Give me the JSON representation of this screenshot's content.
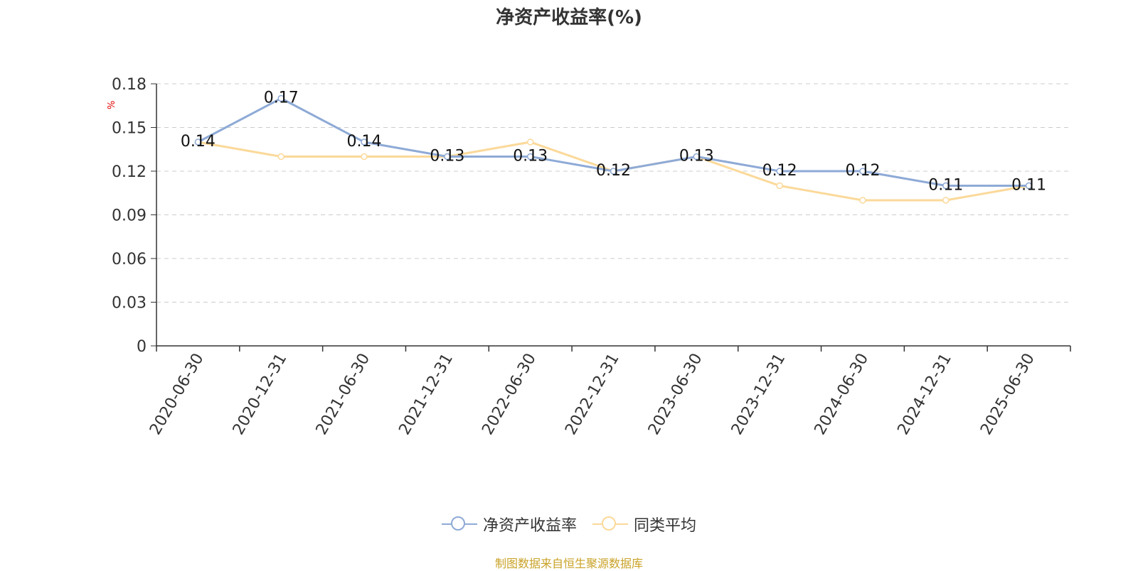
{
  "title": "净资产收益率(%)",
  "source": "制图数据来自恒生聚源数据库",
  "chart_data": {
    "type": "line",
    "title": "净资产收益率(%)",
    "ylabel": "%",
    "xlabel": "",
    "ylim": [
      0,
      0.18
    ],
    "yticks": [
      "0",
      "0.03",
      "0.06",
      "0.09",
      "0.12",
      "0.15",
      "0.18"
    ],
    "grid": true,
    "legend_position": "bottom",
    "categories": [
      "2020-06-30",
      "2020-12-31",
      "2021-06-30",
      "2021-12-31",
      "2022-06-30",
      "2022-12-31",
      "2023-06-30",
      "2023-12-31",
      "2024-06-30",
      "2024-12-31",
      "2025-06-30"
    ],
    "series": [
      {
        "name": "净资产收益率",
        "color": "#8eaad6",
        "values": [
          0.14,
          0.17,
          0.14,
          0.13,
          0.13,
          0.12,
          0.13,
          0.12,
          0.12,
          0.11,
          0.11
        ],
        "labels": [
          "0.14",
          "0.17",
          "0.14",
          "0.13",
          "0.13",
          "0.12",
          "0.13",
          "0.12",
          "0.12",
          "0.11",
          "0.11"
        ]
      },
      {
        "name": "同类平均",
        "color": "#fbd99a",
        "values": [
          0.14,
          0.13,
          0.13,
          0.13,
          0.14,
          0.12,
          0.13,
          0.11,
          0.1,
          0.1,
          0.11
        ]
      }
    ]
  }
}
